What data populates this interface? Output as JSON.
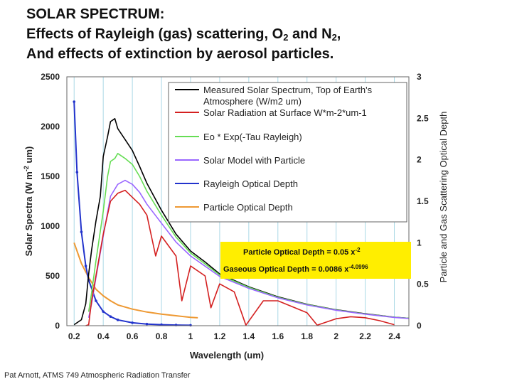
{
  "title": {
    "line1": "SOLAR SPECTRUM:",
    "line2_pre": "Effects of Rayleigh (gas) scattering, O",
    "line2_sub1": "2",
    "line2_mid": " and N",
    "line2_sub2": "2",
    "line2_post": ",",
    "line3": "And effects of extinction by aerosol particles."
  },
  "footer": "Pat Arnott, ATMS 749 Atmospheric Radiation Transfer",
  "colors": {
    "measured_toa": "#000000",
    "surface": "#d42020",
    "rayleigh_model": "#66dd55",
    "particle_model": "#9966ff",
    "rayleigh_depth": "#2233cc",
    "particle_depth": "#ee9933",
    "grid": "#aad8e6",
    "box_fill": "#ffee00"
  },
  "chart_data": {
    "type": "line",
    "title": "SOLAR SPECTRUM",
    "xlabel": "Wavelength (um)",
    "ylabel": "Solar Spectra (W m-2 um)",
    "ylabel_main": "Solar Spectra (W m",
    "ylabel_sup": "-2",
    "ylabel_end": " um)",
    "y2label": "Particle and Gas Scattering Optical Depth",
    "xlim": [
      0.15,
      2.5
    ],
    "ylim": [
      0,
      2500
    ],
    "y2lim": [
      0,
      3
    ],
    "xticks": [
      "0.2",
      "0.4",
      "0.6",
      "0.8",
      "1",
      "1.2",
      "1.4",
      "1.6",
      "1.8",
      "2",
      "2.2",
      "2.4"
    ],
    "yticks": [
      "0",
      "500",
      "1000",
      "1500",
      "2000",
      "2500"
    ],
    "y2ticks": [
      "0",
      "0.5",
      "1",
      "1.5",
      "2",
      "2.5",
      "3"
    ],
    "grid": true,
    "legend": "top-right",
    "series": [
      {
        "name": "Measured Solar Spectrum, Top of Earth's Atmosphere (W/m2 um)",
        "axis": "left",
        "x": [
          0.2,
          0.25,
          0.28,
          0.3,
          0.32,
          0.35,
          0.38,
          0.4,
          0.43,
          0.45,
          0.48,
          0.5,
          0.55,
          0.6,
          0.65,
          0.7,
          0.8,
          0.9,
          1.0,
          1.1,
          1.2,
          1.4,
          1.6,
          1.8,
          2.0,
          2.2,
          2.4,
          2.5
        ],
        "y": [
          10,
          60,
          220,
          520,
          760,
          1050,
          1300,
          1700,
          1900,
          2050,
          2080,
          1980,
          1870,
          1760,
          1600,
          1430,
          1160,
          920,
          750,
          640,
          520,
          390,
          290,
          215,
          160,
          120,
          85,
          75
        ]
      },
      {
        "name": "Solar Radiation at Surface W*m-2*um-1",
        "axis": "left",
        "x": [
          0.28,
          0.3,
          0.32,
          0.35,
          0.4,
          0.45,
          0.5,
          0.55,
          0.6,
          0.65,
          0.7,
          0.76,
          0.8,
          0.9,
          0.94,
          1.0,
          1.1,
          1.14,
          1.2,
          1.3,
          1.38,
          1.5,
          1.6,
          1.8,
          1.87,
          2.0,
          2.1,
          2.2,
          2.3,
          2.4
        ],
        "y": [
          0,
          10,
          250,
          500,
          920,
          1250,
          1330,
          1360,
          1290,
          1220,
          1110,
          700,
          900,
          700,
          250,
          600,
          500,
          180,
          420,
          340,
          5,
          250,
          250,
          130,
          5,
          70,
          90,
          80,
          50,
          10
        ]
      },
      {
        "name": "Eo * Exp(-Tau Rayleigh)",
        "axis": "left",
        "x": [
          0.3,
          0.32,
          0.35,
          0.4,
          0.43,
          0.45,
          0.48,
          0.5,
          0.55,
          0.6,
          0.65,
          0.7,
          0.8,
          0.9,
          1.0,
          1.2,
          1.4,
          1.6,
          1.8,
          2.0,
          2.2,
          2.4,
          2.5
        ],
        "y": [
          140,
          330,
          650,
          1150,
          1500,
          1650,
          1680,
          1730,
          1680,
          1620,
          1500,
          1350,
          1110,
          890,
          730,
          510,
          385,
          285,
          212,
          158,
          118,
          84,
          74
        ]
      },
      {
        "name": "Solar Model with Particle",
        "axis": "left",
        "x": [
          0.3,
          0.32,
          0.35,
          0.4,
          0.45,
          0.5,
          0.55,
          0.6,
          0.65,
          0.7,
          0.8,
          0.9,
          1.0,
          1.2,
          1.4,
          1.6,
          1.8,
          2.0,
          2.2,
          2.4,
          2.5
        ],
        "y": [
          80,
          220,
          480,
          900,
          1300,
          1420,
          1460,
          1420,
          1340,
          1220,
          1030,
          840,
          700,
          495,
          375,
          280,
          208,
          155,
          116,
          83,
          73
        ]
      },
      {
        "name": "Rayleigh Optical Depth",
        "axis": "right",
        "x": [
          0.2,
          0.22,
          0.25,
          0.28,
          0.3,
          0.35,
          0.4,
          0.45,
          0.5,
          0.6,
          0.7,
          0.8,
          0.9,
          1.0
        ],
        "y": [
          2.7,
          1.85,
          1.13,
          0.72,
          0.55,
          0.3,
          0.17,
          0.11,
          0.07,
          0.035,
          0.02,
          0.012,
          0.008,
          0.005
        ]
      },
      {
        "name": "Particle Optical Depth",
        "axis": "right",
        "x": [
          0.2,
          0.25,
          0.3,
          0.35,
          0.4,
          0.45,
          0.5,
          0.6,
          0.7,
          0.8,
          0.9,
          1.0,
          1.05
        ],
        "y": [
          1.0,
          0.75,
          0.58,
          0.44,
          0.36,
          0.3,
          0.25,
          0.2,
          0.165,
          0.14,
          0.12,
          0.1,
          0.095
        ]
      }
    ],
    "annotations": [
      {
        "label": "Particle Optical Depth = 0.05 x",
        "sup": "-2"
      },
      {
        "label": "Gaseous Optical Depth = 0.0086 x",
        "sup": "-4.0996"
      }
    ]
  }
}
